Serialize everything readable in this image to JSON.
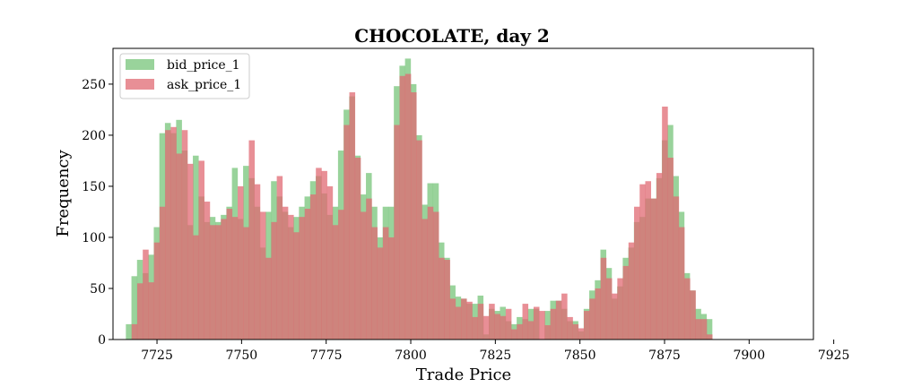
{
  "chart_data": {
    "type": "histogram",
    "title": "CHOCOLATE, day 2",
    "xlabel": "Trade Price",
    "ylabel": "Frequency",
    "xlim": [
      7712,
      7919
    ],
    "ylim": [
      0,
      285
    ],
    "bin_width": 1.65,
    "x_ticks": [
      7725,
      7750,
      7775,
      7800,
      7825,
      7850,
      7875,
      7900,
      7925
    ],
    "y_ticks": [
      0,
      50,
      100,
      150,
      200,
      250
    ],
    "legend_position": "top-left",
    "grid": false,
    "series": [
      {
        "name": "bid_price_1",
        "color": "#77c47a",
        "alpha": 0.75,
        "bin_start": 7715.8,
        "values": [
          15,
          62,
          78,
          65,
          83,
          110,
          202,
          212,
          202,
          215,
          185,
          112,
          180,
          140,
          115,
          120,
          115,
          122,
          130,
          168,
          118,
          170,
          158,
          130,
          90,
          125,
          155,
          140,
          125,
          110,
          120,
          130,
          140,
          155,
          160,
          143,
          122,
          130,
          185,
          225,
          238,
          180,
          142,
          163,
          130,
          100,
          130,
          130,
          248,
          268,
          275,
          250,
          200,
          132,
          153,
          153,
          95,
          80,
          53,
          42,
          40,
          35,
          35,
          43,
          5,
          30,
          28,
          32,
          18,
          15,
          22,
          20,
          30,
          30,
          0,
          28,
          38,
          38,
          30,
          18,
          18,
          8,
          30,
          48,
          58,
          88,
          70,
          40,
          52,
          80,
          90,
          115,
          120,
          138,
          138,
          158,
          195,
          210,
          160,
          125,
          65,
          48,
          30,
          25,
          20
        ]
      },
      {
        "name": "ask_price_1",
        "color": "#e06a73",
        "alpha": 0.75,
        "bin_start": 7717.5,
        "values": [
          15,
          55,
          88,
          56,
          95,
          130,
          205,
          208,
          182,
          205,
          172,
          102,
          175,
          135,
          112,
          112,
          118,
          128,
          120,
          150,
          110,
          195,
          152,
          125,
          80,
          115,
          160,
          130,
          122,
          105,
          120,
          128,
          142,
          168,
          165,
          150,
          112,
          127,
          210,
          242,
          178,
          125,
          138,
          110,
          90,
          110,
          100,
          210,
          258,
          260,
          242,
          195,
          118,
          130,
          125,
          80,
          78,
          40,
          32,
          40,
          37,
          22,
          35,
          23,
          35,
          25,
          23,
          30,
          10,
          15,
          35,
          18,
          32,
          28,
          14,
          30,
          38,
          45,
          22,
          15,
          11,
          28,
          40,
          50,
          80,
          60,
          45,
          60,
          72,
          95,
          130,
          152,
          155,
          138,
          163,
          228,
          178,
          140,
          110,
          60,
          48,
          20,
          20,
          5
        ]
      }
    ]
  }
}
